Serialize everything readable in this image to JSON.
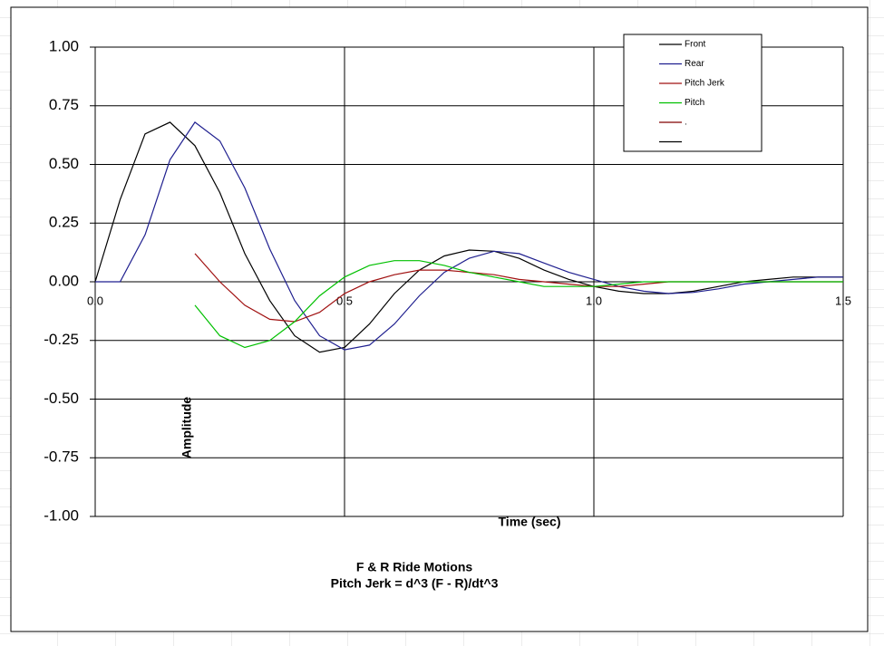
{
  "chart_data": {
    "type": "line",
    "title": "F & R Ride Motions",
    "subtitle": "Pitch Jerk = d^3 (F - R)/dt^3",
    "x_label": "Time (sec)",
    "y_label": "Amplitude",
    "x": [
      0,
      0.05,
      0.1,
      0.15,
      0.2,
      0.25,
      0.3,
      0.35,
      0.4,
      0.45,
      0.5,
      0.55,
      0.6,
      0.65,
      0.7,
      0.75,
      0.8,
      0.85,
      0.9,
      0.95,
      1.0,
      1.05,
      1.1,
      1.15,
      1.2,
      1.25,
      1.3,
      1.35,
      1.4,
      1.45,
      1.5
    ],
    "series": [
      {
        "name": "Front",
        "color": "#000000",
        "values": [
          0,
          0.35,
          0.63,
          0.68,
          0.58,
          0.38,
          0.12,
          -0.08,
          -0.23,
          -0.3,
          -0.28,
          -0.18,
          -0.05,
          0.05,
          0.11,
          0.135,
          0.13,
          0.1,
          0.05,
          0.01,
          -0.02,
          -0.04,
          -0.05,
          -0.05,
          -0.04,
          -0.02,
          0,
          0.01,
          0.02,
          0.02,
          0.02
        ]
      },
      {
        "name": "Rear",
        "color": "#1f1f8f",
        "values": [
          0,
          0,
          0.2,
          0.52,
          0.68,
          0.6,
          0.4,
          0.14,
          -0.08,
          -0.23,
          -0.29,
          -0.27,
          -0.18,
          -0.06,
          0.04,
          0.1,
          0.13,
          0.12,
          0.08,
          0.04,
          0.01,
          -0.02,
          -0.04,
          -0.05,
          -0.045,
          -0.03,
          -0.01,
          0,
          0.01,
          0.02,
          0.02
        ]
      },
      {
        "name": "Pitch Jerk",
        "color": "#a01010",
        "values": [
          null,
          null,
          null,
          null,
          0.12,
          0,
          -0.1,
          -0.16,
          -0.17,
          -0.13,
          -0.05,
          0,
          0.03,
          0.05,
          0.05,
          0.04,
          0.03,
          0.01,
          0,
          -0.01,
          -0.02,
          -0.02,
          -0.01,
          0,
          0,
          0,
          0,
          0,
          0,
          0,
          0
        ]
      },
      {
        "name": "Pitch",
        "color": "#00c000",
        "values": [
          null,
          null,
          null,
          null,
          -0.1,
          -0.23,
          -0.28,
          -0.25,
          -0.17,
          -0.06,
          0.02,
          0.07,
          0.09,
          0.09,
          0.07,
          0.04,
          0.02,
          0,
          -0.02,
          -0.02,
          -0.02,
          -0.01,
          0,
          0,
          0,
          0,
          0,
          0,
          0,
          0,
          0
        ]
      },
      {
        "name": ".",
        "color": "#800000",
        "values": [
          null,
          null,
          null,
          null,
          null,
          null,
          null,
          null,
          null,
          null,
          null,
          null,
          null,
          null,
          null,
          null,
          null,
          null,
          null,
          null,
          null,
          null,
          null,
          null,
          null,
          null,
          null,
          null,
          null,
          null,
          null
        ]
      },
      {
        "name": null,
        "color": "#000000",
        "values": [
          null,
          null,
          null,
          null,
          null,
          null,
          null,
          null,
          null,
          null,
          null,
          null,
          null,
          null,
          null,
          null,
          null,
          null,
          null,
          null,
          null,
          null,
          null,
          null,
          null,
          null,
          null,
          null,
          null,
          null,
          null
        ]
      }
    ],
    "xlim": [
      0,
      1.5
    ],
    "xticks": [
      {
        "value": 0,
        "label": "0.0"
      },
      0.5,
      {
        "value": 1,
        "label": "1.0"
      },
      1.5
    ],
    "ylim": [
      -1,
      1
    ],
    "yticks": [
      {
        "value": -1,
        "label": "-1.00"
      },
      -0.75,
      {
        "value": -0.5,
        "label": "-0.50"
      },
      -0.25,
      {
        "value": 0,
        "label": "0.00"
      },
      0.25,
      {
        "value": 0.5,
        "label": "0.50"
      },
      0.75,
      {
        "value": 1,
        "label": "1.00"
      }
    ],
    "grid": true,
    "legend": "upper right"
  }
}
